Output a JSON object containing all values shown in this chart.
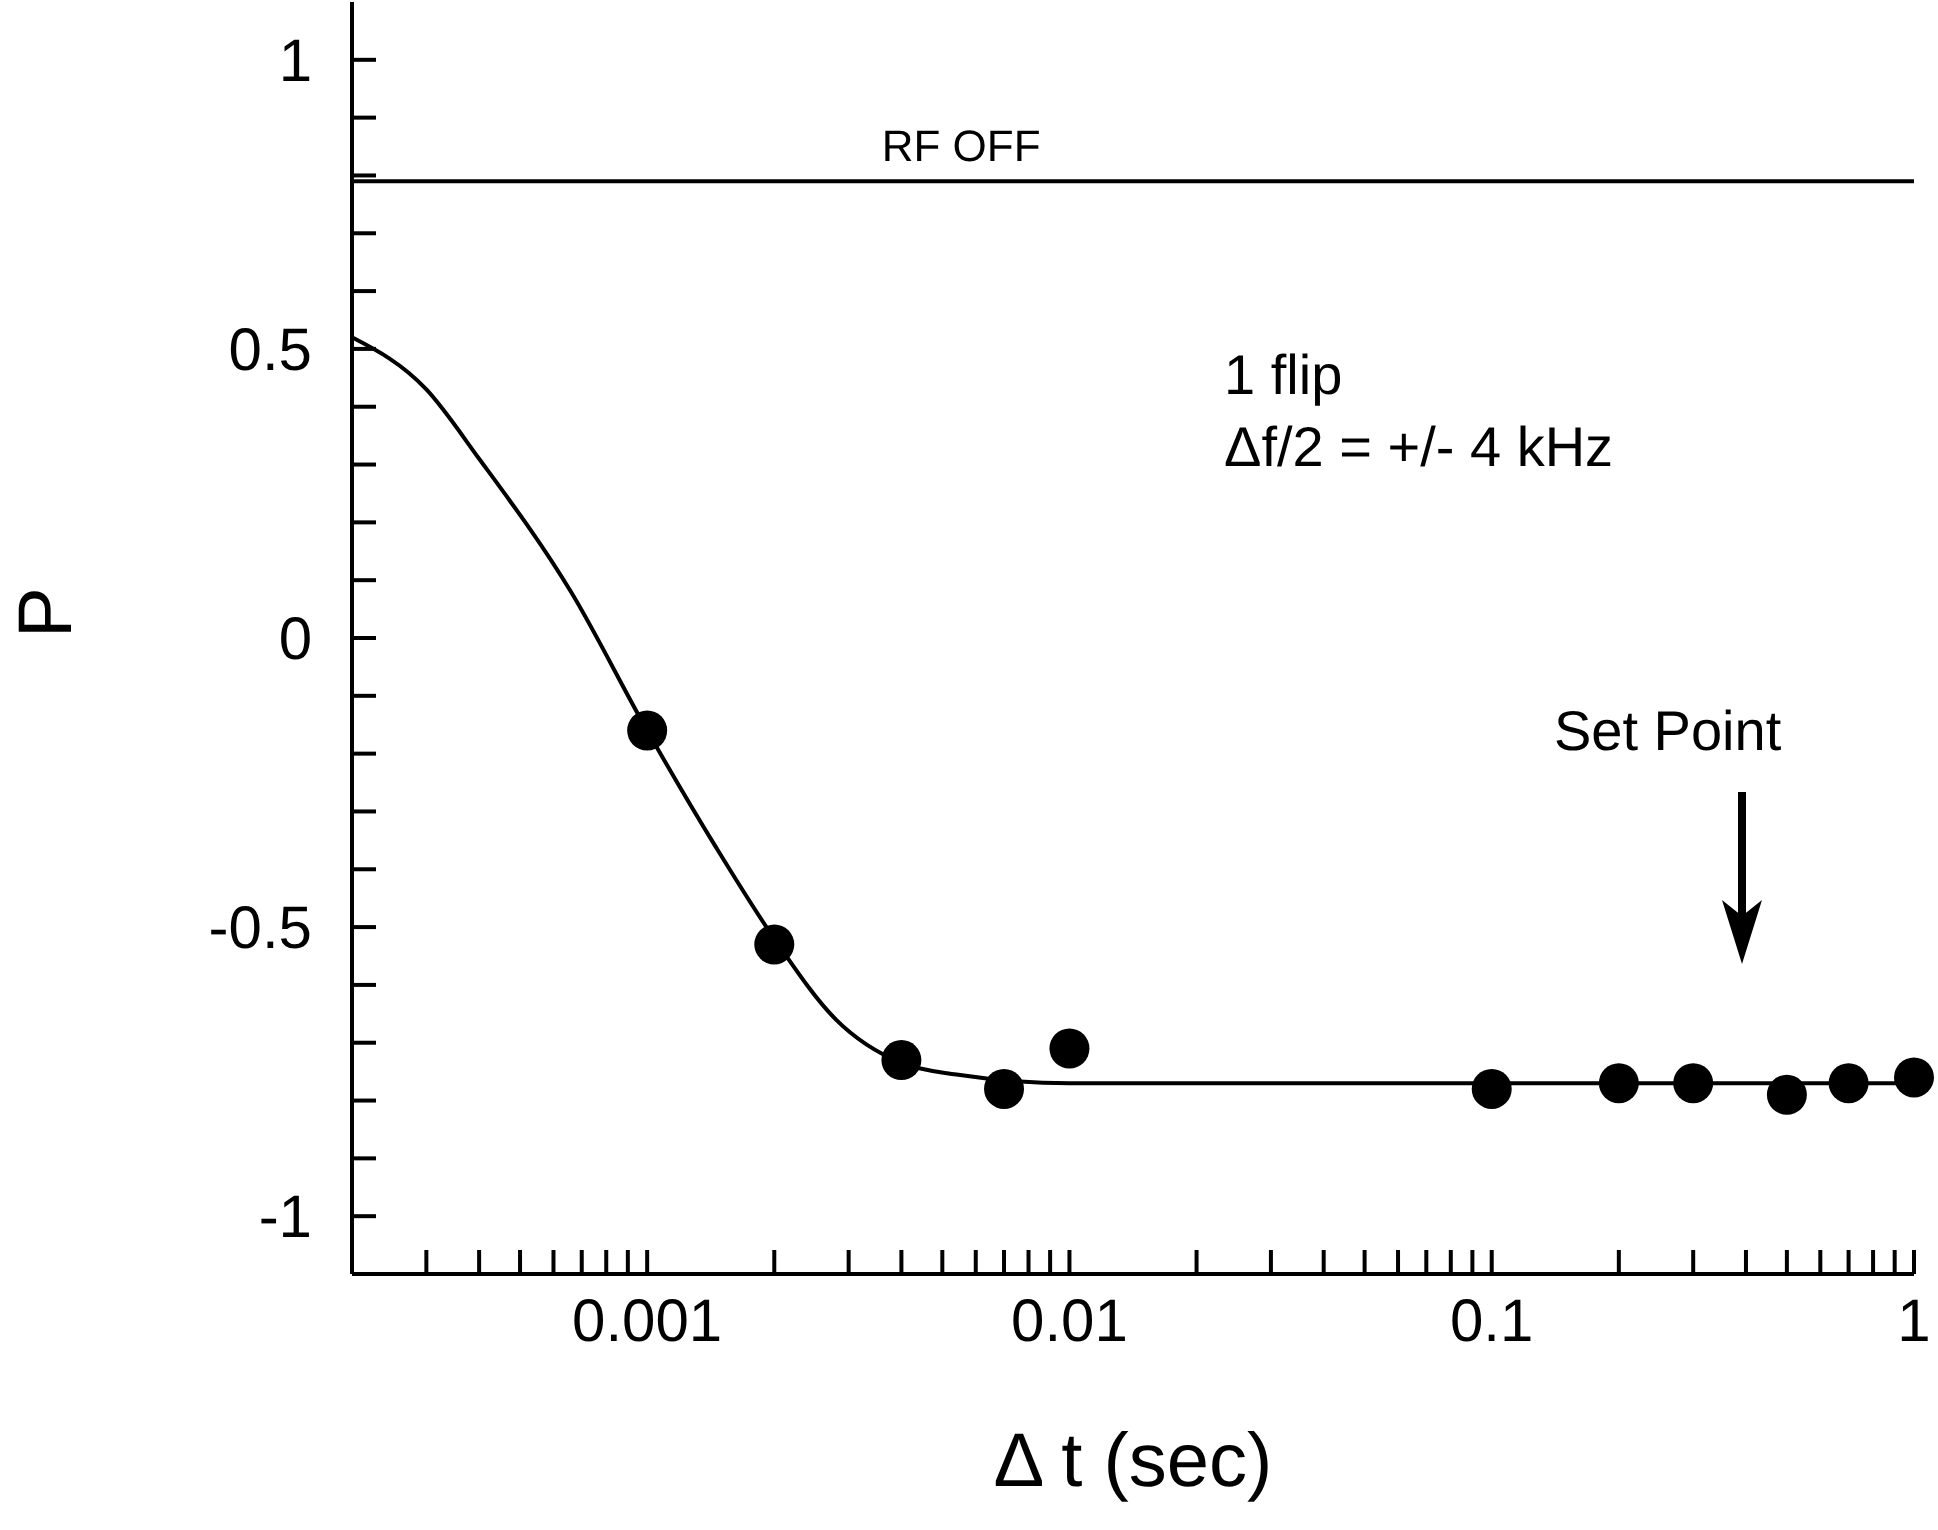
{
  "chart_data": {
    "type": "scatter",
    "xlabel": "Δ t (sec)",
    "ylabel": "P",
    "log": "x",
    "grid": false,
    "marker": "circle",
    "xlim": [
      0.0002,
      1
    ],
    "ylim": [
      -1.1,
      1.1
    ],
    "xticks": [
      {
        "value": 0.0003,
        "label": null
      },
      {
        "value": 0.0004,
        "label": null
      },
      {
        "value": 0.0005,
        "label": null
      },
      {
        "value": 0.0006,
        "label": null
      },
      {
        "value": 0.0007,
        "label": null
      },
      {
        "value": 0.0008,
        "label": null
      },
      {
        "value": 0.0009,
        "label": null
      },
      0.001,
      {
        "value": 0.002,
        "label": null
      },
      {
        "value": 0.003,
        "label": null
      },
      {
        "value": 0.004,
        "label": null
      },
      {
        "value": 0.005,
        "label": null
      },
      {
        "value": 0.006,
        "label": null
      },
      {
        "value": 0.007,
        "label": null
      },
      {
        "value": 0.008,
        "label": null
      },
      {
        "value": 0.009,
        "label": null
      },
      0.01,
      {
        "value": 0.02,
        "label": null
      },
      {
        "value": 0.03,
        "label": null
      },
      {
        "value": 0.04,
        "label": null
      },
      {
        "value": 0.05,
        "label": null
      },
      {
        "value": 0.06,
        "label": null
      },
      {
        "value": 0.07,
        "label": null
      },
      {
        "value": 0.08,
        "label": null
      },
      {
        "value": 0.09,
        "label": null
      },
      0.1,
      {
        "value": 0.2,
        "label": null
      },
      {
        "value": 0.3,
        "label": null
      },
      {
        "value": 0.4,
        "label": null
      },
      {
        "value": 0.5,
        "label": null
      },
      {
        "value": 0.6,
        "label": null
      },
      {
        "value": 0.7,
        "label": null
      },
      {
        "value": 0.8,
        "label": null
      },
      {
        "value": 0.9,
        "label": null
      },
      1
    ],
    "yticks": [
      -1,
      {
        "value": -0.9,
        "label": null
      },
      {
        "value": -0.8,
        "label": null
      },
      {
        "value": -0.7,
        "label": null
      },
      {
        "value": -0.6,
        "label": null
      },
      -0.5,
      {
        "value": -0.4,
        "label": null
      },
      {
        "value": -0.3,
        "label": null
      },
      {
        "value": -0.2,
        "label": null
      },
      {
        "value": -0.1,
        "label": null
      },
      0,
      {
        "value": 0.1,
        "label": null
      },
      {
        "value": 0.2,
        "label": null
      },
      {
        "value": 0.3,
        "label": null
      },
      {
        "value": 0.4,
        "label": null
      },
      0.5,
      {
        "value": 0.6,
        "label": null
      },
      {
        "value": 0.7,
        "label": null
      },
      {
        "value": 0.8,
        "label": null
      },
      {
        "value": 0.9,
        "label": null
      },
      1
    ],
    "ref_lines": [
      {
        "axis": "y",
        "value": 0.79,
        "label": "RF OFF",
        "color": "#000000"
      }
    ],
    "annotations": [
      "1 flip",
      "Δf/2 = +/- 4 kHz",
      "Set Point"
    ],
    "series": [
      {
        "type": "scatter",
        "color": "#000000",
        "x": [
          0.001,
          0.002,
          0.004,
          0.007,
          0.01,
          0.1,
          0.2,
          0.3,
          0.5,
          0.7,
          1
        ],
        "values": [
          -0.16,
          -0.53,
          -0.73,
          -0.78,
          -0.71,
          -0.78,
          -0.77,
          -0.77,
          -0.79,
          -0.77,
          -0.76
        ]
      },
      {
        "type": "line",
        "color": "#000000",
        "line_style": "solid",
        "marker": "none",
        "x": [
          0.0002,
          0.0003,
          0.0004,
          0.00066,
          0.001,
          0.00145,
          0.002,
          0.0028,
          0.004,
          0.0054,
          0.01,
          1
        ],
        "values": [
          0.52,
          0.43,
          0.31,
          0.08,
          -0.16,
          -0.36,
          -0.52,
          -0.66,
          -0.735,
          -0.755,
          -0.77,
          -0.77
        ]
      }
    ]
  }
}
